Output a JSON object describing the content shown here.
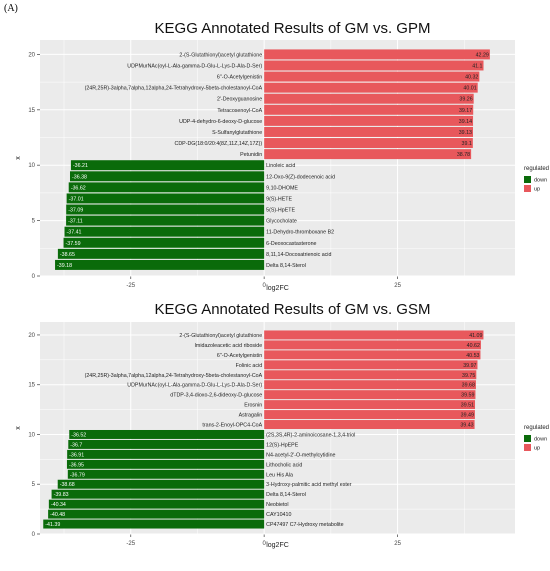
{
  "panel_label": "(A)",
  "colors": {
    "down": "#0a6b0a",
    "up": "#e8585c",
    "panel_bg": "#ebebeb",
    "grid": "#ffffff"
  },
  "chart_data": [
    {
      "type": "bar",
      "orientation": "horizontal",
      "title": "KEGG Annotated Results of GM vs. GPM",
      "xlabel": "log2FC",
      "ylabel": "x",
      "xlim": [
        -42,
        47
      ],
      "ylim": [
        0,
        21.3
      ],
      "x_ticks": [
        -25,
        0,
        25
      ],
      "y_ticks": [
        0,
        5,
        10,
        15,
        20
      ],
      "legend": {
        "title": "regulated",
        "entries": [
          "down",
          "up"
        ],
        "position": "right"
      },
      "grid": true,
      "bars": [
        {
          "label": "2-(S-Glutathionyl)acetyl glutathione",
          "value": 42.29,
          "value_label": "42.29",
          "group": "up"
        },
        {
          "label": "UDPMurNAc(oyl-L-Ala-gamma-D-Glu-L-Lys-D-Ala-D-Ser)",
          "value": 41.1,
          "value_label": "41.1",
          "group": "up"
        },
        {
          "label": "6''-O-Acetylgenistin",
          "value": 40.32,
          "value_label": "40.32",
          "group": "up"
        },
        {
          "label": "(24R,25R)-3alpha,7alpha,12alpha,24-Tetrahydroxy-5beta-cholestanoyl-CoA",
          "value": 40.01,
          "value_label": "40.01",
          "group": "up"
        },
        {
          "label": "2'-Deoxyguanosine",
          "value": 39.26,
          "value_label": "39.26",
          "group": "up"
        },
        {
          "label": "Tetracosenoyl-CoA",
          "value": 39.17,
          "value_label": "39.17",
          "group": "up"
        },
        {
          "label": "UDP-4-dehydro-6-deoxy-D-glucose",
          "value": 39.14,
          "value_label": "39.14",
          "group": "up"
        },
        {
          "label": "S-Sulfanylglutathione",
          "value": 39.13,
          "value_label": "39.13",
          "group": "up"
        },
        {
          "label": "CDP-DG(18:0/20:4(8Z,11Z,14Z,17Z))",
          "value": 39.1,
          "value_label": "39.1",
          "group": "up"
        },
        {
          "label": "Petunidin",
          "value": 38.78,
          "value_label": "38.78",
          "group": "up"
        },
        {
          "label": "Linoleic acid",
          "value": -36.21,
          "value_label": "-36.21",
          "group": "down"
        },
        {
          "label": "12-Oxo-9(Z)-dodecenoic acid",
          "value": -36.38,
          "value_label": "-36.38",
          "group": "down"
        },
        {
          "label": "9,10-DHOME",
          "value": -36.62,
          "value_label": "-36.62",
          "group": "down"
        },
        {
          "label": "9(S)-HETE",
          "value": -37.01,
          "value_label": "-37.01",
          "group": "down"
        },
        {
          "label": "5(S)-HpETE",
          "value": -37.09,
          "value_label": "-37.09",
          "group": "down"
        },
        {
          "label": "Glycocholate",
          "value": -37.11,
          "value_label": "-37.11",
          "group": "down"
        },
        {
          "label": "11-Dehydro-thromboxane B2",
          "value": -37.41,
          "value_label": "-37.41",
          "group": "down"
        },
        {
          "label": "6-Deoxocastasterone",
          "value": -37.59,
          "value_label": "-37.59",
          "group": "down"
        },
        {
          "label": "8,11,14-Docosatrienoic acid",
          "value": -38.65,
          "value_label": "-38.65",
          "group": "down"
        },
        {
          "label": "Delta 8,14-Sterol",
          "value": -39.18,
          "value_label": "-39.18",
          "group": "down"
        }
      ]
    },
    {
      "type": "bar",
      "orientation": "horizontal",
      "title": "KEGG Annotated Results of GM vs. GSM",
      "xlabel": "log2FC",
      "ylabel": "x",
      "xlim": [
        -42,
        47
      ],
      "ylim": [
        0,
        21.3
      ],
      "x_ticks": [
        -25,
        0,
        25
      ],
      "y_ticks": [
        0,
        5,
        10,
        15,
        20
      ],
      "legend": {
        "title": "regulated",
        "entries": [
          "down",
          "up"
        ],
        "position": "right"
      },
      "grid": true,
      "bars": [
        {
          "label": "2-(S-Glutathionyl)acetyl glutathione",
          "value": 41.09,
          "value_label": "41.09",
          "group": "up"
        },
        {
          "label": "Imidazoleacetic acid riboside",
          "value": 40.62,
          "value_label": "40.62",
          "group": "up"
        },
        {
          "label": "6''-O-Acetylgenistin",
          "value": 40.53,
          "value_label": "40.53",
          "group": "up"
        },
        {
          "label": "Folinic acid",
          "value": 39.97,
          "value_label": "39.97",
          "group": "up"
        },
        {
          "label": "(24R,25R)-3alpha,7alpha,12alpha,24-Tetrahydroxy-5beta-cholestanoyl-CoA",
          "value": 39.75,
          "value_label": "39.75",
          "group": "up"
        },
        {
          "label": "UDPMurNAc(oyl-L-Ala-gamma-D-Glu-L-Lys-D-Ala-D-Ser)",
          "value": 39.68,
          "value_label": "39.68",
          "group": "up"
        },
        {
          "label": "dTDP-3,4-dioxo-2,6-dideoxy-D-glucose",
          "value": 39.59,
          "value_label": "39.59",
          "group": "up"
        },
        {
          "label": "Erosnin",
          "value": 39.51,
          "value_label": "39.51",
          "group": "up"
        },
        {
          "label": "Astragalin",
          "value": 39.49,
          "value_label": "39.49",
          "group": "up"
        },
        {
          "label": "trans-2-Enoyl-OPC4-CoA",
          "value": 39.43,
          "value_label": "39.43",
          "group": "up"
        },
        {
          "label": "(2S,3S,4R)-2-aminoicosane-1,3,4-triol",
          "value": -36.52,
          "value_label": "-36.52",
          "group": "down"
        },
        {
          "label": "12(S)-HpEPE",
          "value": -36.7,
          "value_label": "-36.7",
          "group": "down"
        },
        {
          "label": "N4-acetyl-2'-O-methylcytidine",
          "value": -36.91,
          "value_label": "-36.91",
          "group": "down"
        },
        {
          "label": "Lithocholic acid",
          "value": -36.95,
          "value_label": "-36.95",
          "group": "down"
        },
        {
          "label": "Leu His Ala",
          "value": -36.79,
          "value_label": "-36.79",
          "group": "down"
        },
        {
          "label": "3-Hydroxy-palmitic acid methyl ester",
          "value": -38.68,
          "value_label": "-38.68",
          "group": "down"
        },
        {
          "label": "Delta 8,14-Sterol",
          "value": -39.83,
          "value_label": "-39.83",
          "group": "down"
        },
        {
          "label": "Neobietol",
          "value": -40.34,
          "value_label": "-40.34",
          "group": "down"
        },
        {
          "label": "CAY10410",
          "value": -40.48,
          "value_label": "-40.48",
          "group": "down"
        },
        {
          "label": "CP47497 C7-Hydroxy metabolite",
          "value": -41.39,
          "value_label": "-41.39",
          "group": "down"
        }
      ]
    }
  ]
}
